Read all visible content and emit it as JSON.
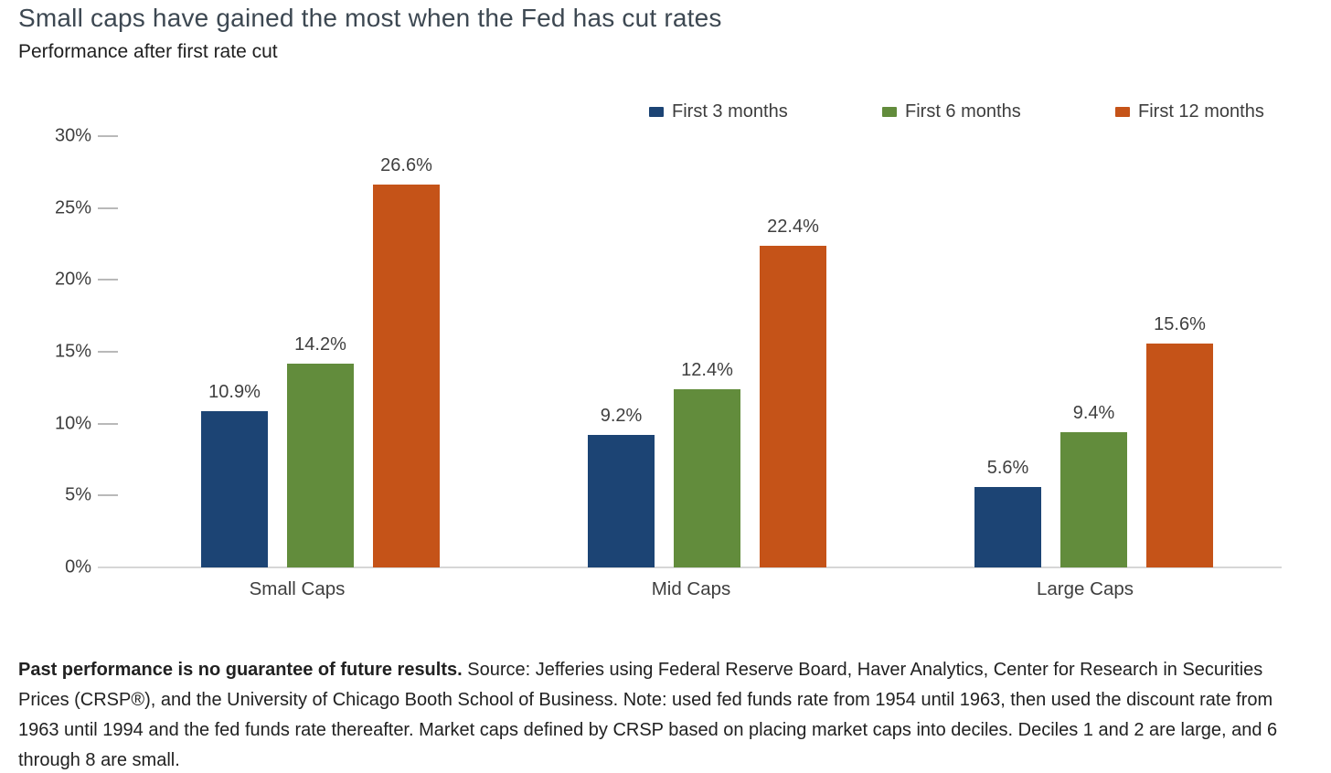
{
  "header": {
    "title": "Small caps have gained the most when the Fed has cut rates",
    "subtitle": "Performance after first rate cut"
  },
  "legend": [
    {
      "label": "First 3 months",
      "color": "#1c4474"
    },
    {
      "label": "First 6 months",
      "color": "#628c3c"
    },
    {
      "label": "First 12 months",
      "color": "#c55318"
    }
  ],
  "chart_data": {
    "type": "bar",
    "title": "Small caps have gained the most when the Fed has cut rates",
    "subtitle": "Performance after first rate cut",
    "categories": [
      "Small Caps",
      "Mid Caps",
      "Large Caps"
    ],
    "series": [
      {
        "name": "First 3 months",
        "color": "#1c4474",
        "values": [
          10.9,
          9.2,
          5.6
        ]
      },
      {
        "name": "First 6 months",
        "color": "#628c3c",
        "values": [
          14.2,
          12.4,
          9.4
        ]
      },
      {
        "name": "First 12 months",
        "color": "#c55318",
        "values": [
          26.6,
          22.4,
          15.6
        ]
      }
    ],
    "data_labels": [
      "10.9%",
      "14.2%",
      "26.6%",
      "9.2%",
      "12.4%",
      "22.4%",
      "5.6%",
      "9.4%",
      "15.6%"
    ],
    "y_ticks": [
      "30%",
      "25%",
      "20%",
      "15%",
      "10%",
      "5%",
      "0%"
    ],
    "ylim": [
      0,
      30
    ],
    "value_suffix": "%",
    "grid": false,
    "legend_position": "top-right",
    "xlabel": "",
    "ylabel": ""
  },
  "footnote": {
    "bold": "Past performance is no guarantee of future results.",
    "rest": " Source: Jefferies using Federal Reserve Board, Haver Analytics, Center for Research in Securities Prices (CRSP®), and the University of Chicago Booth School of Business. Note: used fed funds rate from 1954 until 1963, then used the discount rate from 1963 until 1994 and the fed funds rate thereafter. Market caps defined by CRSP based on placing market caps into deciles. Deciles 1 and 2 are large, and 6 through 8 are small."
  }
}
